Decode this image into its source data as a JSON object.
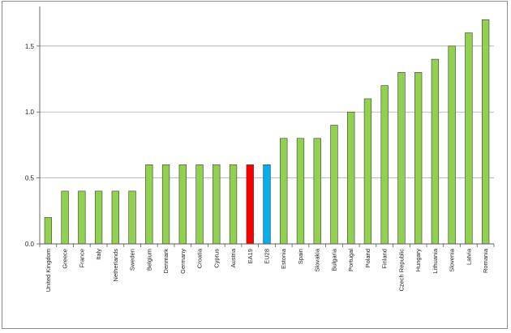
{
  "chart_data": {
    "type": "bar",
    "title": "",
    "xlabel": "",
    "ylabel": "",
    "ylim": [
      0,
      1.8
    ],
    "yticks": [
      0.0,
      0.5,
      1.0,
      1.5
    ],
    "ytick_labels": [
      "0.0",
      "0.5",
      "1.0",
      "1.5"
    ],
    "grid": true,
    "legend": "none",
    "categories": [
      "United Kingdom",
      "Greece",
      "France",
      "Italy",
      "Netherlands",
      "Sweden",
      "Belgium",
      "Denmark",
      "Germany",
      "Croatia",
      "Cyprus",
      "Austria",
      "EA19",
      "EU28",
      "Estonia",
      "Spain",
      "Slovakia",
      "Bulgaria",
      "Portugal",
      "Poland",
      "Finland",
      "Czech Republic",
      "Hungary",
      "Lithuania",
      "Slovenia",
      "Latvia",
      "Romania"
    ],
    "values": [
      0.2,
      0.4,
      0.4,
      0.4,
      0.4,
      0.4,
      0.6,
      0.6,
      0.6,
      0.6,
      0.6,
      0.6,
      0.6,
      0.6,
      0.8,
      0.8,
      0.8,
      0.9,
      1.0,
      1.1,
      1.2,
      1.3,
      1.3,
      1.4,
      1.5,
      1.6,
      1.7
    ],
    "colors": {
      "default": "#92d050",
      "EA19": "#ff0000",
      "EU28": "#00b0f0",
      "bar_edge": "#3a3a3a",
      "grid": "#a6a6a6",
      "axis": "#595959"
    }
  }
}
